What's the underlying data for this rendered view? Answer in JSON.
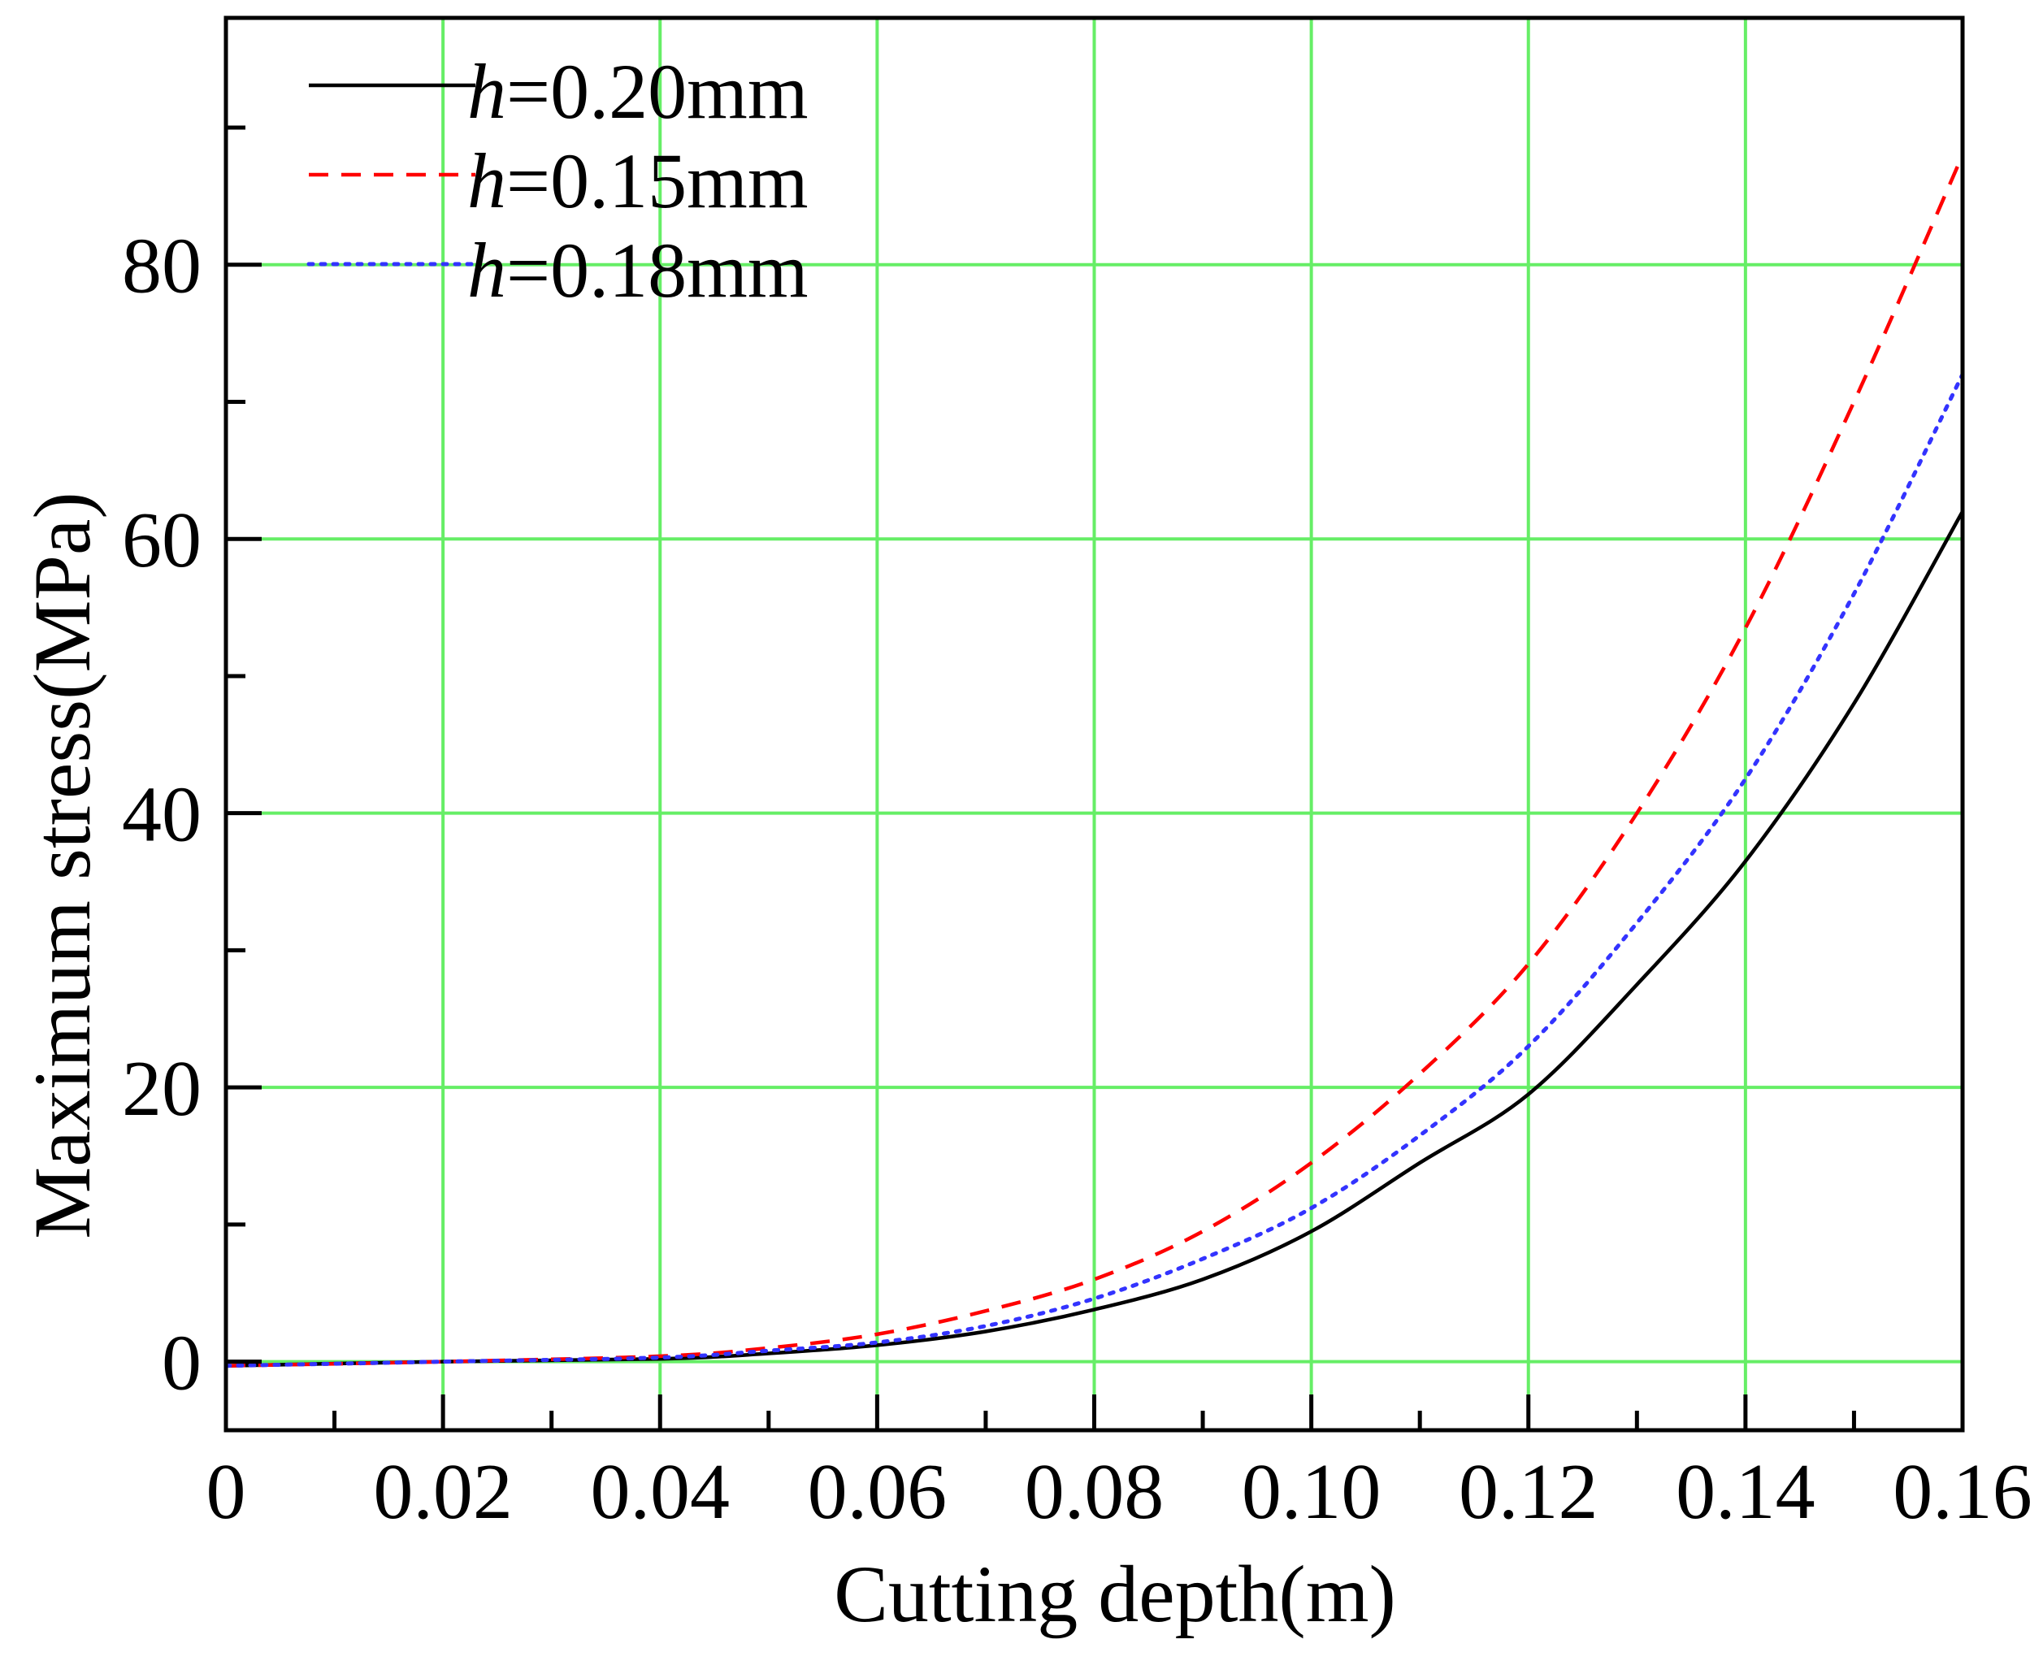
{
  "chart_data": {
    "type": "line",
    "title": "",
    "xlabel": "Cutting depth(m)",
    "ylabel": "Maximum stress(MPa)",
    "xlim": [
      0,
      0.16
    ],
    "ylim": [
      -5,
      98
    ],
    "xticks": [
      0,
      0.02,
      0.04,
      0.06,
      0.08,
      0.1,
      0.12,
      0.14,
      0.16
    ],
    "xtick_labels": [
      "0",
      "0.02",
      "0.04",
      "0.06",
      "0.08",
      "0.10",
      "0.12",
      "0.14",
      "0.16"
    ],
    "yticks": [
      0,
      20,
      40,
      60,
      80
    ],
    "ytick_labels": [
      "0",
      "20",
      "40",
      "60",
      "80"
    ],
    "grid": true,
    "grid_color": "#66ee66",
    "legend_position": "top-left",
    "series": [
      {
        "name": "h=0.20mm",
        "name_italic": "h",
        "name_rest": "=0.20mm",
        "color": "#000000",
        "style": "solid",
        "x": [
          0,
          0.02,
          0.04,
          0.05,
          0.06,
          0.07,
          0.08,
          0.09,
          0.1,
          0.11,
          0.12,
          0.13,
          0.14,
          0.15,
          0.16
        ],
        "y": [
          -0.3,
          0,
          0.2,
          0.6,
          1.2,
          2.2,
          3.8,
          6.0,
          9.5,
          14.5,
          19.5,
          27.5,
          36.5,
          48.0,
          62.0
        ]
      },
      {
        "name": "h=0.15mm",
        "name_italic": "h",
        "name_rest": "=0.15mm",
        "color": "#ff0000",
        "style": "dashed",
        "x": [
          0,
          0.02,
          0.04,
          0.05,
          0.06,
          0.07,
          0.08,
          0.09,
          0.1,
          0.11,
          0.12,
          0.13,
          0.14,
          0.15,
          0.16
        ],
        "y": [
          -0.3,
          0,
          0.4,
          1.0,
          2.0,
          3.7,
          6.0,
          9.5,
          14.5,
          21.0,
          29.0,
          40.0,
          53.5,
          70.0,
          88.0
        ]
      },
      {
        "name": "h=0.18mm",
        "name_italic": "h",
        "name_rest": "=0.18mm",
        "color": "#3333ff",
        "style": "dotted",
        "x": [
          0,
          0.02,
          0.04,
          0.05,
          0.06,
          0.07,
          0.08,
          0.09,
          0.1,
          0.11,
          0.12,
          0.13,
          0.14,
          0.15,
          0.16
        ],
        "y": [
          -0.3,
          0,
          0.3,
          0.8,
          1.4,
          2.6,
          4.6,
          7.5,
          11.2,
          16.5,
          23.0,
          32.0,
          42.5,
          56.0,
          72.0
        ]
      }
    ]
  }
}
